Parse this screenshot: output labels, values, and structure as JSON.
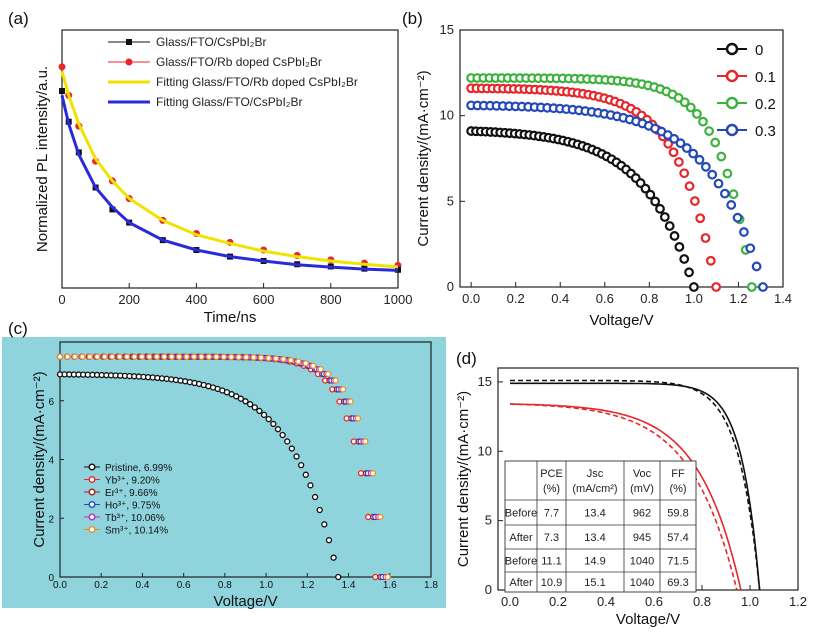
{
  "chart_data": [
    {
      "panel": "(a)",
      "type": "scatter",
      "xlabel": "Time/ns",
      "ylabel": "Normalized PL intensity/a.u.",
      "xlim": [
        0,
        1000
      ],
      "xticks": [
        "0",
        "200",
        "400",
        "600",
        "800",
        "1000"
      ],
      "yticks": [],
      "legend_position": "top",
      "series": [
        {
          "name": "Glass/FTO/CsPbI₂Br",
          "style": "square-markers",
          "color": "#111111",
          "x": [
            0,
            20,
            50,
            100,
            150,
            200,
            300,
            400,
            500,
            600,
            700,
            800,
            900,
            1000
          ],
          "y": [
            0.88,
            0.74,
            0.6,
            0.44,
            0.34,
            0.28,
            0.2,
            0.155,
            0.125,
            0.105,
            0.09,
            0.08,
            0.07,
            0.065
          ]
        },
        {
          "name": "Glass/FTO/Rb doped CsPbI₂Br",
          "style": "circle-markers",
          "color": "#e8262a",
          "x": [
            0,
            20,
            50,
            100,
            150,
            200,
            300,
            400,
            500,
            600,
            700,
            800,
            900,
            1000
          ],
          "y": [
            0.99,
            0.86,
            0.72,
            0.56,
            0.47,
            0.39,
            0.29,
            0.23,
            0.19,
            0.155,
            0.13,
            0.11,
            0.095,
            0.085
          ]
        },
        {
          "name": "Fitting Glass/FTO/Rb doped CsPbI₂Br",
          "style": "line",
          "color": "#f2e200",
          "x": [
            0,
            20,
            50,
            100,
            150,
            200,
            300,
            400,
            500,
            600,
            700,
            800,
            900,
            1000
          ],
          "y": [
            0.97,
            0.86,
            0.73,
            0.57,
            0.47,
            0.39,
            0.29,
            0.225,
            0.185,
            0.15,
            0.125,
            0.105,
            0.09,
            0.078
          ]
        },
        {
          "name": "Fitting Glass/FTO/CsPbI₂Br",
          "style": "line",
          "color": "#2a2ad8",
          "x": [
            0,
            20,
            50,
            100,
            150,
            200,
            300,
            400,
            500,
            600,
            700,
            800,
            900,
            1000
          ],
          "y": [
            0.86,
            0.73,
            0.59,
            0.44,
            0.35,
            0.28,
            0.2,
            0.155,
            0.125,
            0.105,
            0.088,
            0.077,
            0.068,
            0.062
          ]
        }
      ]
    },
    {
      "panel": "(b)",
      "type": "scatter",
      "xlabel": "Voltage/V",
      "ylabel": "Current density/(mA·cm⁻²)",
      "xlim": [
        -0.05,
        1.4
      ],
      "ylim": [
        0,
        15
      ],
      "xticks": [
        "0.0",
        "0.2",
        "0.4",
        "0.6",
        "0.8",
        "1.0",
        "1.2",
        "1.4"
      ],
      "yticks": [
        "0",
        "5",
        "10",
        "15"
      ],
      "legend_position": "top-right",
      "series": [
        {
          "name": "0",
          "color": "#111111",
          "jsc": 9.1,
          "voc": 1.0,
          "sharpness": 4.5
        },
        {
          "name": "0.1",
          "color": "#e8262a",
          "jsc": 11.6,
          "voc": 1.1,
          "sharpness": 6.5
        },
        {
          "name": "0.2",
          "color": "#3cb23c",
          "jsc": 12.2,
          "voc": 1.26,
          "sharpness": 9.0
        },
        {
          "name": "0.3",
          "color": "#2448b8",
          "jsc": 10.6,
          "voc": 1.31,
          "sharpness": 5.5
        }
      ]
    },
    {
      "panel": "(c)",
      "type": "scatter",
      "xlabel": "Voltage/V",
      "ylabel": "Current density/(mA·cm⁻²)",
      "xlim": [
        0,
        1.8
      ],
      "ylim": [
        0,
        8
      ],
      "xticks": [
        "0.0",
        "0.2",
        "0.4",
        "0.6",
        "0.8",
        "1.0",
        "1.2",
        "1.4",
        "1.6",
        "1.8"
      ],
      "yticks": [
        "0",
        "2",
        "4",
        "6"
      ],
      "background": "#8fd3dc",
      "legend_position": "bottom-left",
      "series": [
        {
          "name": "Pristine, 6.99%",
          "color": "#111111",
          "jsc": 6.9,
          "voc": 1.35,
          "sharpness": 6.0
        },
        {
          "name": "Yb³⁺, 9.20%",
          "color": "#e8262a",
          "jsc": 7.5,
          "voc": 1.53,
          "sharpness": 14.0
        },
        {
          "name": "Er³⁺, 9.66%",
          "color": "#b01818",
          "jsc": 7.5,
          "voc": 1.555,
          "sharpness": 14.0
        },
        {
          "name": "Ho³⁺, 9.75%",
          "color": "#2448b8",
          "jsc": 7.5,
          "voc": 1.565,
          "sharpness": 14.0
        },
        {
          "name": "Tb³⁺, 10.06%",
          "color": "#c02cc0",
          "jsc": 7.5,
          "voc": 1.58,
          "sharpness": 14.0
        },
        {
          "name": "Sm³⁺, 10.14%",
          "color": "#f09020",
          "jsc": 7.5,
          "voc": 1.59,
          "sharpness": 14.0
        }
      ]
    },
    {
      "panel": "(d)",
      "type": "line",
      "xlabel": "Voltage/V",
      "ylabel": "Current density/(mA·cm⁻²)",
      "xlim": [
        -0.05,
        1.2
      ],
      "ylim": [
        0,
        16
      ],
      "xticks": [
        "0.0",
        "0.2",
        "0.4",
        "0.6",
        "0.8",
        "1.0",
        "1.2"
      ],
      "yticks": [
        "0",
        "5",
        "10",
        "15"
      ],
      "series": [
        {
          "color": "#111111",
          "style": "solid",
          "jsc": 14.9,
          "voc": 1.04,
          "sharpness": 14.0
        },
        {
          "color": "#111111",
          "style": "dashed",
          "jsc": 15.1,
          "voc": 1.04,
          "sharpness": 12.0
        },
        {
          "color": "#e8262a",
          "style": "solid",
          "jsc": 13.4,
          "voc": 0.962,
          "sharpness": 5.5
        },
        {
          "color": "#e8262a",
          "style": "dashed",
          "jsc": 13.4,
          "voc": 0.945,
          "sharpness": 5.0
        }
      ],
      "table": {
        "headers": [
          [
            "PCE",
            "(%)"
          ],
          [
            "Jsc",
            "(mA/cm²)"
          ],
          [
            "Voc",
            "(mV)"
          ],
          [
            "FF",
            "(%)"
          ]
        ],
        "rows": [
          {
            "label": "Before",
            "values": [
              "7.7",
              "13.4",
              "962",
              "59.8"
            ],
            "color": "#e8262a"
          },
          {
            "label": "After",
            "values": [
              "7.3",
              "13.4",
              "945",
              "57.4"
            ],
            "color": "#e8262a"
          },
          {
            "label": "Before",
            "values": [
              "11.1",
              "14.9",
              "1040",
              "71.5"
            ],
            "color": "#111111"
          },
          {
            "label": "After",
            "values": [
              "10.9",
              "15.1",
              "1040",
              "69.3"
            ],
            "color": "#111111"
          }
        ]
      }
    }
  ]
}
